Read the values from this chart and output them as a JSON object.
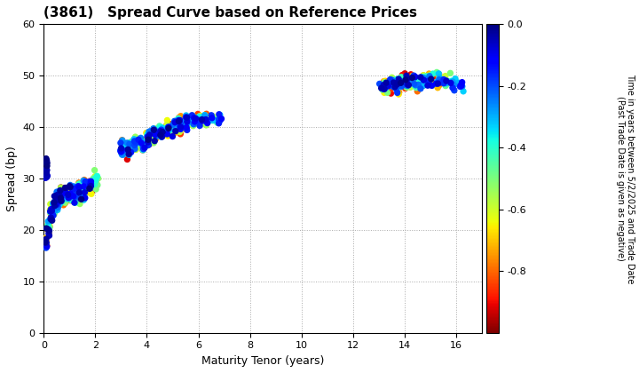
{
  "title": "(3861)   Spread Curve based on Reference Prices",
  "xlabel": "Maturity Tenor (years)",
  "ylabel": "Spread (bp)",
  "colorbar_label": "Time in years between 5/2/2025 and Trade Date\n(Past Trade Date is given as negative)",
  "xlim": [
    0,
    17
  ],
  "ylim": [
    0,
    60
  ],
  "xticks": [
    0,
    2,
    4,
    6,
    8,
    10,
    12,
    14,
    16
  ],
  "yticks": [
    0,
    10,
    20,
    30,
    40,
    50,
    60
  ],
  "cmap": "jet_r",
  "vmin": -1.0,
  "vmax": 0.0,
  "colorbar_ticks": [
    0.0,
    -0.2,
    -0.4,
    -0.6,
    -0.8
  ],
  "dot_size": 28,
  "clusters": [
    {
      "x_center": 0.08,
      "y_center": 17.5,
      "spread_x": 0.025,
      "spread_y": 0.5,
      "n": 20,
      "color_range": [
        -0.95,
        0.0
      ]
    },
    {
      "x_center": 0.18,
      "y_center": 20.5,
      "spread_x": 0.03,
      "spread_y": 0.8,
      "n": 25,
      "color_range": [
        -0.95,
        0.0
      ]
    },
    {
      "x_center": 0.28,
      "y_center": 23.0,
      "spread_x": 0.03,
      "spread_y": 0.8,
      "n": 25,
      "color_range": [
        -0.95,
        0.0
      ]
    },
    {
      "x_center": 0.4,
      "y_center": 24.5,
      "spread_x": 0.035,
      "spread_y": 0.9,
      "n": 25,
      "color_range": [
        -0.95,
        0.0
      ]
    },
    {
      "x_center": 0.53,
      "y_center": 25.5,
      "spread_x": 0.035,
      "spread_y": 0.9,
      "n": 25,
      "color_range": [
        -0.95,
        0.0
      ]
    },
    {
      "x_center": 0.67,
      "y_center": 26.3,
      "spread_x": 0.04,
      "spread_y": 0.9,
      "n": 25,
      "color_range": [
        -0.95,
        0.0
      ]
    },
    {
      "x_center": 0.82,
      "y_center": 26.8,
      "spread_x": 0.04,
      "spread_y": 0.9,
      "n": 25,
      "color_range": [
        -0.95,
        0.0
      ]
    },
    {
      "x_center": 1.0,
      "y_center": 27.0,
      "spread_x": 0.04,
      "spread_y": 0.9,
      "n": 25,
      "color_range": [
        -0.95,
        0.0
      ]
    },
    {
      "x_center": 1.18,
      "y_center": 27.3,
      "spread_x": 0.04,
      "spread_y": 0.9,
      "n": 25,
      "color_range": [
        -0.95,
        0.0
      ]
    },
    {
      "x_center": 1.38,
      "y_center": 27.5,
      "spread_x": 0.04,
      "spread_y": 0.9,
      "n": 25,
      "color_range": [
        -0.95,
        0.0
      ]
    },
    {
      "x_center": 1.58,
      "y_center": 27.8,
      "spread_x": 0.04,
      "spread_y": 0.9,
      "n": 25,
      "color_range": [
        -0.95,
        0.0
      ]
    },
    {
      "x_center": 1.8,
      "y_center": 28.5,
      "spread_x": 0.04,
      "spread_y": 0.9,
      "n": 25,
      "color_range": [
        -0.95,
        0.0
      ]
    },
    {
      "x_center": 2.02,
      "y_center": 29.5,
      "spread_x": 0.04,
      "spread_y": 0.9,
      "n": 25,
      "color_range": [
        -0.95,
        -0.3
      ]
    },
    {
      "x_center": 0.1,
      "y_center": 33.0,
      "spread_x": 0.02,
      "spread_y": 0.4,
      "n": 8,
      "color_range": [
        -0.05,
        0.0
      ]
    },
    {
      "x_center": 0.1,
      "y_center": 31.0,
      "spread_x": 0.02,
      "spread_y": 0.4,
      "n": 8,
      "color_range": [
        -0.1,
        -0.02
      ]
    },
    {
      "x_center": 0.1,
      "y_center": 30.5,
      "spread_x": 0.02,
      "spread_y": 0.3,
      "n": 5,
      "color_range": [
        -0.15,
        -0.05
      ]
    },
    {
      "x_center": 3.05,
      "y_center": 35.5,
      "spread_x": 0.05,
      "spread_y": 0.8,
      "n": 25,
      "color_range": [
        -0.95,
        0.0
      ]
    },
    {
      "x_center": 3.3,
      "y_center": 36.0,
      "spread_x": 0.05,
      "spread_y": 0.8,
      "n": 25,
      "color_range": [
        -0.95,
        0.0
      ]
    },
    {
      "x_center": 3.55,
      "y_center": 36.5,
      "spread_x": 0.05,
      "spread_y": 0.8,
      "n": 25,
      "color_range": [
        -0.95,
        0.0
      ]
    },
    {
      "x_center": 3.8,
      "y_center": 36.8,
      "spread_x": 0.05,
      "spread_y": 0.8,
      "n": 25,
      "color_range": [
        -0.95,
        0.0
      ]
    },
    {
      "x_center": 4.05,
      "y_center": 37.5,
      "spread_x": 0.05,
      "spread_y": 0.8,
      "n": 25,
      "color_range": [
        -0.95,
        0.0
      ]
    },
    {
      "x_center": 4.3,
      "y_center": 38.5,
      "spread_x": 0.05,
      "spread_y": 0.8,
      "n": 25,
      "color_range": [
        -0.95,
        0.0
      ]
    },
    {
      "x_center": 4.55,
      "y_center": 39.0,
      "spread_x": 0.05,
      "spread_y": 0.7,
      "n": 25,
      "color_range": [
        -0.95,
        0.0
      ]
    },
    {
      "x_center": 4.8,
      "y_center": 39.5,
      "spread_x": 0.05,
      "spread_y": 0.7,
      "n": 25,
      "color_range": [
        -0.95,
        0.0
      ]
    },
    {
      "x_center": 5.05,
      "y_center": 40.2,
      "spread_x": 0.05,
      "spread_y": 0.7,
      "n": 25,
      "color_range": [
        -0.95,
        0.0
      ]
    },
    {
      "x_center": 5.3,
      "y_center": 40.7,
      "spread_x": 0.05,
      "spread_y": 0.7,
      "n": 25,
      "color_range": [
        -0.95,
        0.0
      ]
    },
    {
      "x_center": 5.55,
      "y_center": 41.0,
      "spread_x": 0.05,
      "spread_y": 0.7,
      "n": 25,
      "color_range": [
        -0.95,
        0.0
      ]
    },
    {
      "x_center": 5.8,
      "y_center": 41.2,
      "spread_x": 0.05,
      "spread_y": 0.6,
      "n": 20,
      "color_range": [
        -0.95,
        0.0
      ]
    },
    {
      "x_center": 6.05,
      "y_center": 41.4,
      "spread_x": 0.05,
      "spread_y": 0.6,
      "n": 20,
      "color_range": [
        -0.95,
        0.0
      ]
    },
    {
      "x_center": 6.3,
      "y_center": 41.5,
      "spread_x": 0.05,
      "spread_y": 0.6,
      "n": 20,
      "color_range": [
        -0.95,
        0.0
      ]
    },
    {
      "x_center": 6.55,
      "y_center": 41.5,
      "spread_x": 0.04,
      "spread_y": 0.5,
      "n": 15,
      "color_range": [
        -0.7,
        0.0
      ]
    },
    {
      "x_center": 6.8,
      "y_center": 41.5,
      "spread_x": 0.04,
      "spread_y": 0.5,
      "n": 10,
      "color_range": [
        -0.5,
        -0.1
      ]
    },
    {
      "x_center": 13.2,
      "y_center": 48.0,
      "spread_x": 0.07,
      "spread_y": 0.8,
      "n": 25,
      "color_range": [
        -0.95,
        0.0
      ]
    },
    {
      "x_center": 13.5,
      "y_center": 48.5,
      "spread_x": 0.07,
      "spread_y": 0.8,
      "n": 25,
      "color_range": [
        -0.95,
        0.0
      ]
    },
    {
      "x_center": 13.8,
      "y_center": 48.5,
      "spread_x": 0.07,
      "spread_y": 0.8,
      "n": 25,
      "color_range": [
        -0.95,
        0.0
      ]
    },
    {
      "x_center": 14.1,
      "y_center": 48.8,
      "spread_x": 0.07,
      "spread_y": 0.8,
      "n": 25,
      "color_range": [
        -0.95,
        0.0
      ]
    },
    {
      "x_center": 14.4,
      "y_center": 49.0,
      "spread_x": 0.07,
      "spread_y": 0.8,
      "n": 25,
      "color_range": [
        -0.95,
        0.0
      ]
    },
    {
      "x_center": 14.7,
      "y_center": 49.2,
      "spread_x": 0.07,
      "spread_y": 0.8,
      "n": 25,
      "color_range": [
        -0.95,
        0.0
      ]
    },
    {
      "x_center": 15.0,
      "y_center": 49.2,
      "spread_x": 0.06,
      "spread_y": 0.7,
      "n": 25,
      "color_range": [
        -0.95,
        0.0
      ]
    },
    {
      "x_center": 15.3,
      "y_center": 49.0,
      "spread_x": 0.06,
      "spread_y": 0.7,
      "n": 20,
      "color_range": [
        -0.95,
        0.0
      ]
    },
    {
      "x_center": 15.6,
      "y_center": 48.7,
      "spread_x": 0.06,
      "spread_y": 0.6,
      "n": 15,
      "color_range": [
        -0.6,
        0.0
      ]
    },
    {
      "x_center": 15.9,
      "y_center": 48.3,
      "spread_x": 0.05,
      "spread_y": 0.5,
      "n": 10,
      "color_range": [
        -0.4,
        -0.05
      ]
    },
    {
      "x_center": 16.2,
      "y_center": 48.0,
      "spread_x": 0.04,
      "spread_y": 0.5,
      "n": 8,
      "color_range": [
        -0.35,
        -0.1
      ]
    }
  ],
  "background_color": "white",
  "grid_color": "#aaaaaa",
  "grid_style": "dotted"
}
